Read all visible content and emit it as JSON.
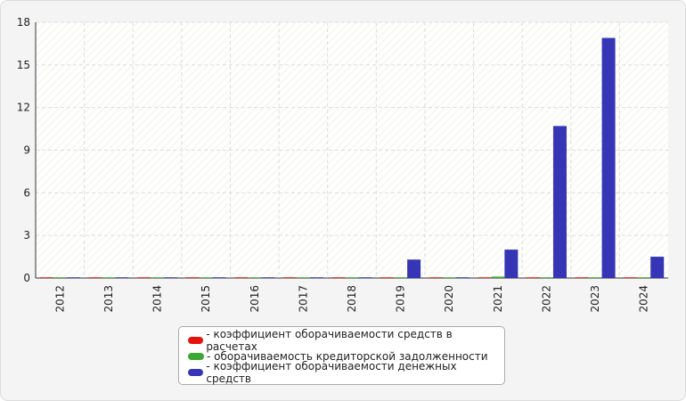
{
  "chart_data": {
    "type": "bar",
    "categories": [
      "2012",
      "2013",
      "2014",
      "2015",
      "2016",
      "2017",
      "2018",
      "2019",
      "2020",
      "2021",
      "2022",
      "2023",
      "2024"
    ],
    "series": [
      {
        "name": "- коэффициент оборачиваемости средств в расчетах",
        "color": "#e8120c",
        "values": [
          0.05,
          0.05,
          0.05,
          0.05,
          0.05,
          0.05,
          0.05,
          0.05,
          0.05,
          0.05,
          0.05,
          0.05,
          0.05
        ]
      },
      {
        "name": "- оборачиваемость кредиторской задолженности",
        "color": "#3aa832",
        "values": [
          0.05,
          0.05,
          0.05,
          0.05,
          0.05,
          0.05,
          0.05,
          0.05,
          0.05,
          0.1,
          0.05,
          0.05,
          0.05
        ]
      },
      {
        "name": "- коэффициент оборачиваемости денежных средств",
        "color": "#3535b5",
        "values": [
          0.05,
          0.05,
          0.05,
          0.05,
          0.05,
          0.05,
          0.05,
          1.3,
          0.05,
          2.0,
          10.7,
          16.9,
          1.5
        ]
      }
    ],
    "ylim": [
      0,
      18
    ],
    "yticks": [
      0,
      3,
      6,
      9,
      12,
      15,
      18
    ],
    "grid": true
  }
}
